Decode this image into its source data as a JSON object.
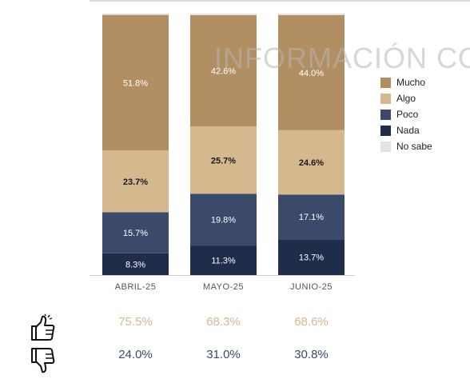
{
  "watermark": "INFORMACIÓN CO",
  "chart_data": {
    "type": "bar",
    "stacked": true,
    "normalized": true,
    "categories": [
      "ABRIL-25",
      "MAYO-25",
      "JUNIO-25"
    ],
    "series": [
      {
        "name": "Nada",
        "color": "#1f2c4a",
        "values": [
          8.3,
          11.3,
          13.7
        ],
        "labels": [
          "8.3%",
          "11.3%",
          "13.7%"
        ]
      },
      {
        "name": "Poco",
        "color": "#3b4a6b",
        "values": [
          15.7,
          19.8,
          17.1
        ],
        "labels": [
          "15.7%",
          "19.8%",
          "17.1%"
        ]
      },
      {
        "name": "Algo",
        "color": "#d6b88f",
        "values": [
          23.7,
          25.7,
          24.6
        ],
        "labels": [
          "23.7%",
          "25.7%",
          "24.6%"
        ]
      },
      {
        "name": "Mucho",
        "color": "#b18f63",
        "values": [
          51.8,
          42.6,
          44.0
        ],
        "labels": [
          "51.8%",
          "42.6%",
          "44.0%"
        ]
      },
      {
        "name": "No sabe",
        "color": "#e3e3e3",
        "values": [
          0.5,
          0.6,
          0.6
        ],
        "labels": [
          "",
          "",
          ""
        ]
      }
    ],
    "legend": {
      "position": "right",
      "items": [
        {
          "name": "Mucho",
          "color": "#b18f63"
        },
        {
          "name": "Algo",
          "color": "#d6b88f"
        },
        {
          "name": "Poco",
          "color": "#3b4a6b"
        },
        {
          "name": "Nada",
          "color": "#1f2c4a"
        },
        {
          "name": "No sabe",
          "color": "#e3e3e3"
        }
      ]
    },
    "summary": [
      {
        "icon": "thumbs-up-icon",
        "color": "#d6b88f",
        "values": [
          "75.5%",
          "68.3%",
          "68.6%"
        ]
      },
      {
        "icon": "thumbs-down-icon",
        "color": "#3b4a6b",
        "values": [
          "24.0%",
          "31.0%",
          "30.8%"
        ]
      }
    ]
  }
}
